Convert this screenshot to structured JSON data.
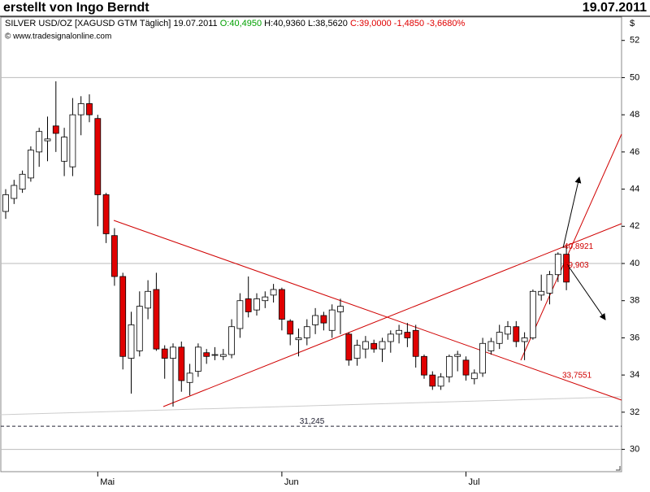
{
  "chart_data": {
    "type": "candlestick",
    "title": "erstellt von Ingo Berndt",
    "date": "19.07.2011",
    "instrument": "SILVER USD/OZ [XAGUSD GTM  Täglich] 19.07.2011",
    "quote_open": "O:40,4950",
    "quote_hl": "H:40,9360 L:38,5620",
    "quote_close": "C:39,0000 -1,4850 -3,6680%",
    "source": "© www.tradesignalonline.com",
    "y_label": "$",
    "categories": [
      null,
      null,
      null,
      null,
      null,
      null,
      null,
      null,
      null,
      null,
      null,
      "Mai",
      null,
      null,
      null,
      null,
      null,
      null,
      null,
      null,
      null,
      null,
      null,
      null,
      null,
      null,
      null,
      null,
      null,
      null,
      null,
      null,
      null,
      "Jun",
      null,
      null,
      null,
      null,
      null,
      null,
      null,
      null,
      null,
      null,
      null,
      null,
      null,
      null,
      null,
      null,
      null,
      null,
      null,
      null,
      null,
      "Jul",
      null,
      null,
      null,
      null,
      null,
      null,
      null,
      null,
      null,
      null,
      null,
      null
    ],
    "open": [
      42.8,
      43.5,
      44.0,
      44.6,
      46.0,
      46.6,
      47.4,
      45.5,
      45.2,
      48.0,
      48.6,
      47.8,
      43.7,
      41.5,
      39.3,
      34.9,
      35.3,
      37.6,
      38.6,
      35.4,
      34.9,
      35.5,
      33.6,
      34.2,
      35.2,
      35.1,
      35.0,
      35.1,
      36.5,
      38.1,
      37.5,
      38.0,
      38.3,
      38.6,
      36.9,
      35.9,
      36.0,
      36.7,
      37.2,
      36.4,
      37.4,
      36.2,
      34.9,
      35.4,
      35.7,
      35.4,
      35.8,
      36.2,
      36.3,
      36.4,
      35.0,
      34.0,
      33.4,
      33.9,
      35.0,
      34.8,
      33.8,
      34.1,
      35.3,
      35.7,
      36.2,
      36.6,
      35.8,
      36.0,
      38.3,
      38.4,
      39.4,
      40.495
    ],
    "high": [
      44.0,
      44.5,
      45.0,
      46.3,
      47.3,
      47.9,
      49.8,
      47.3,
      48.9,
      49.0,
      49.1,
      48.0,
      43.8,
      41.9,
      39.5,
      37.4,
      38.5,
      39.1,
      39.5,
      35.6,
      35.7,
      35.8,
      34.6,
      35.7,
      35.4,
      35.5,
      35.4,
      37.0,
      38.4,
      39.3,
      38.4,
      38.5,
      38.9,
      38.7,
      37.0,
      36.5,
      37.0,
      37.6,
      37.4,
      37.8,
      38.1,
      36.3,
      35.9,
      36.1,
      35.9,
      36.0,
      36.4,
      36.7,
      36.8,
      36.7,
      35.1,
      34.2,
      34.1,
      35.1,
      35.3,
      35.0,
      34.3,
      36.0,
      36.0,
      36.7,
      36.9,
      36.9,
      36.3,
      38.6,
      39.4,
      39.6,
      40.6,
      40.936
    ],
    "low": [
      42.4,
      43.2,
      43.8,
      44.4,
      45.2,
      45.5,
      46.0,
      44.7,
      44.7,
      46.9,
      47.6,
      42.0,
      41.1,
      38.8,
      34.3,
      33.0,
      35.0,
      37.0,
      35.3,
      33.8,
      32.3,
      33.1,
      32.9,
      33.9,
      34.6,
      34.8,
      34.8,
      34.9,
      36.0,
      37.1,
      37.2,
      37.6,
      37.9,
      36.4,
      35.6,
      35.0,
      35.6,
      36.2,
      36.4,
      36.0,
      36.2,
      34.5,
      34.5,
      34.9,
      35.2,
      34.7,
      35.2,
      35.7,
      35.5,
      34.4,
      33.8,
      33.2,
      33.2,
      33.6,
      34.2,
      33.7,
      33.5,
      33.9,
      35.1,
      35.4,
      35.9,
      35.5,
      34.8,
      35.9,
      38.0,
      37.8,
      39.0,
      38.562
    ],
    "close": [
      43.7,
      44.2,
      44.8,
      46.1,
      47.1,
      46.7,
      47.0,
      46.8,
      48.0,
      48.6,
      48.0,
      43.7,
      41.6,
      39.3,
      35.0,
      36.7,
      37.7,
      38.5,
      35.4,
      34.9,
      35.5,
      33.7,
      34.1,
      35.5,
      35.0,
      35.1,
      35.1,
      36.6,
      38.0,
      37.4,
      38.1,
      38.2,
      38.6,
      37.0,
      36.2,
      36.0,
      36.6,
      37.2,
      36.8,
      37.5,
      37.7,
      34.8,
      35.6,
      35.8,
      35.4,
      35.8,
      36.2,
      36.4,
      36.0,
      35.0,
      34.0,
      33.4,
      33.9,
      35.0,
      35.1,
      34.0,
      34.1,
      35.7,
      35.8,
      36.3,
      36.6,
      35.8,
      36.0,
      38.5,
      38.5,
      39.4,
      40.5,
      39.0
    ],
    "up_color": "#ffffff",
    "down_color": "#e00000",
    "ylim": [
      28.8,
      53.3
    ],
    "yticks": [
      30,
      32,
      34,
      36,
      38,
      40,
      42,
      44,
      46,
      48,
      50,
      52
    ],
    "ygrid": [
      30,
      40,
      50
    ],
    "annotations": [
      {
        "label": "40,8921",
        "value": 40.8921
      },
      {
        "label": "39,903",
        "value": 39.903
      },
      {
        "label": "33,7551",
        "value": 33.7551
      }
    ],
    "support": {
      "label": "31,245",
      "value": 31.245
    }
  }
}
